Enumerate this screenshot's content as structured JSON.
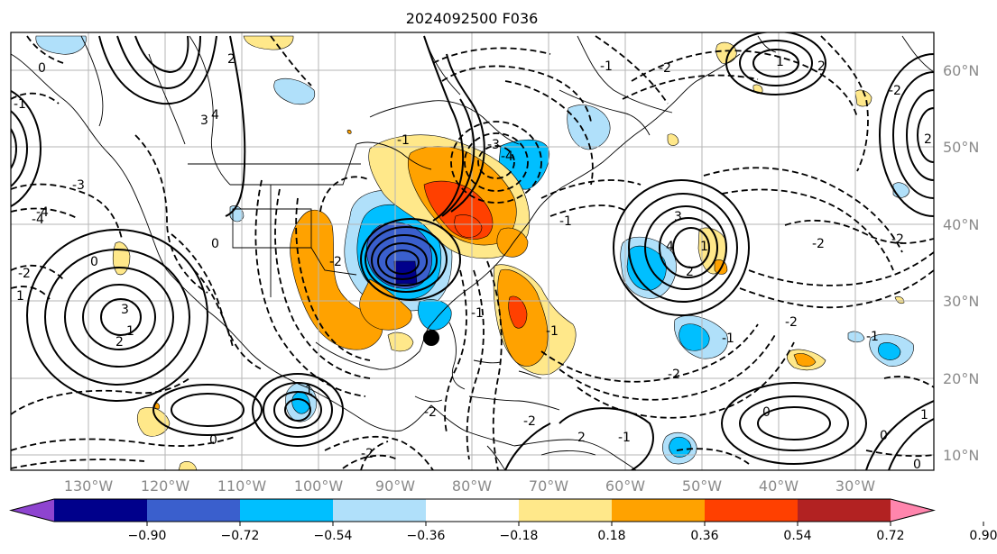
{
  "title": "2024092500 F036",
  "longitude_labels": [
    "130°W",
    "120°W",
    "110°W",
    "100°W",
    "90°W",
    "80°W",
    "70°W",
    "60°W",
    "50°W",
    "40°W",
    "30°W"
  ],
  "latitude_labels": [
    "60°N",
    "50°N",
    "40°N",
    "30°N",
    "20°N",
    "10°N"
  ],
  "colorbar": {
    "ticks": [
      "−0.90",
      "−0.72",
      "−0.54",
      "−0.36",
      "−0.18",
      "0.18",
      "0.36",
      "0.54",
      "0.72",
      "0.90"
    ],
    "colors": [
      "#8e44d0",
      "#00008b",
      "#3a5fcd",
      "#00bfff",
      "#b0e0fa",
      "#ffffff",
      "#ffe88a",
      "#ffa200",
      "#ff4000",
      "#b22222",
      "#ff85ad"
    ]
  },
  "contour_labels": {
    "positive": [
      "2",
      "3",
      "4",
      "1",
      "2",
      "3",
      "4",
      "1",
      "3",
      "2",
      "0",
      "1",
      "2",
      "1",
      "0",
      "0",
      "1",
      "2",
      "2",
      "0",
      "0",
      "1",
      "0",
      "0"
    ],
    "negative": [
      "-3",
      "-4",
      "-2",
      "-1",
      "-2",
      "-3",
      "-4",
      "-2",
      "-1",
      "-2",
      "-1",
      "-2",
      "-2",
      "-1",
      "-2",
      "-1",
      "-4",
      "-2",
      "-2",
      "-1",
      "-1",
      "-2",
      "-1",
      "-2",
      "-1"
    ]
  },
  "marker": "storm-center-dot"
}
